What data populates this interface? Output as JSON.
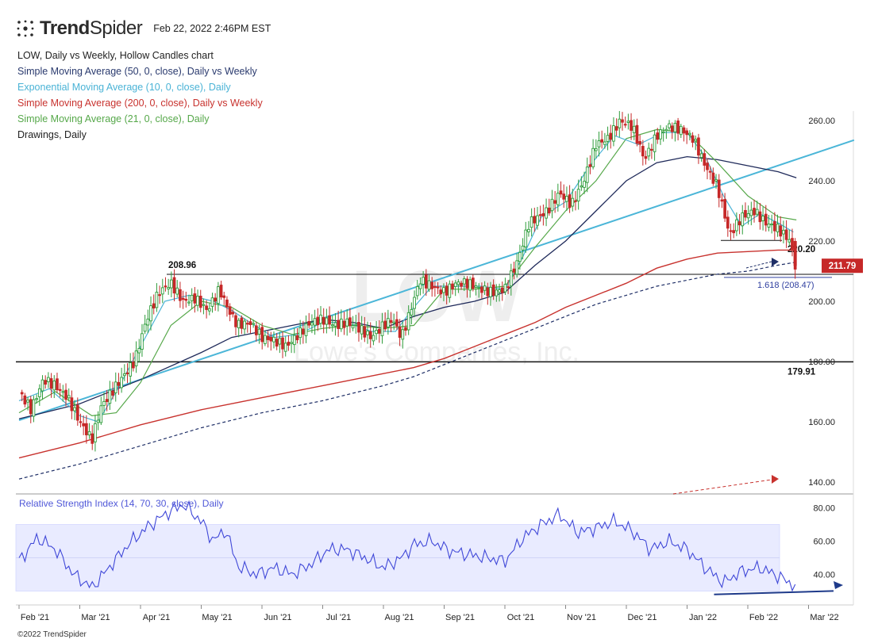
{
  "header": {
    "brand_bold": "Trend",
    "brand_light": "Spider",
    "timestamp": "Feb 22, 2022 2:46PM EST"
  },
  "legend": [
    {
      "text": "LOW, Daily vs Weekly, Hollow Candles chart",
      "color": "#222222"
    },
    {
      "text": "Simple Moving Average (50, 0, close), Daily vs Weekly",
      "color": "#2a3a6e"
    },
    {
      "text": "Exponential Moving Average (10, 0, close), Daily",
      "color": "#4ab3d6"
    },
    {
      "text": "Simple Moving Average (200, 0, close), Daily vs Weekly",
      "color": "#c8322e"
    },
    {
      "text": "Simple Moving Average (21, 0, close), Daily",
      "color": "#56a84a"
    },
    {
      "text": "Drawings, Daily",
      "color": "#222222"
    }
  ],
  "watermark": {
    "ticker": "LOW",
    "name": "Lowe's Companies, Inc."
  },
  "copyright": "©2022 TrendSpider",
  "chart_data": {
    "type": "candlestick",
    "ticker": "LOW",
    "y_axis": {
      "ticks": [
        140,
        160,
        180,
        200,
        220,
        240,
        260
      ],
      "tick_labels": [
        "140.00",
        "160.00",
        "180.00",
        "200.00",
        "220.00",
        "240.00",
        "260.00"
      ],
      "range": [
        136,
        271
      ]
    },
    "x_axis": {
      "tick_labels": [
        "Feb '21",
        "Mar '21",
        "Apr '21",
        "May '21",
        "Jun '21",
        "Jul '21",
        "Aug '21",
        "Sep '21",
        "Oct '21",
        "Nov '21",
        "Dec '21",
        "Jan '22",
        "Feb '22",
        "Mar '22"
      ],
      "tick_months": [
        0,
        1,
        2,
        3,
        4,
        5,
        6,
        7,
        8,
        9,
        10,
        11,
        12,
        13
      ]
    },
    "price_path": [
      [
        0,
        170
      ],
      [
        0.2,
        164
      ],
      [
        0.4,
        174
      ],
      [
        0.6,
        172
      ],
      [
        0.8,
        168
      ],
      [
        1.0,
        160
      ],
      [
        1.2,
        154
      ],
      [
        1.35,
        165
      ],
      [
        1.6,
        172
      ],
      [
        1.9,
        180
      ],
      [
        2.1,
        194
      ],
      [
        2.3,
        203
      ],
      [
        2.5,
        206
      ],
      [
        2.7,
        200
      ],
      [
        2.9,
        201
      ],
      [
        3.1,
        197
      ],
      [
        3.3,
        204
      ],
      [
        3.45,
        197
      ],
      [
        3.6,
        192
      ],
      [
        3.8,
        193
      ],
      [
        4.0,
        188
      ],
      [
        4.2,
        187
      ],
      [
        4.4,
        185
      ],
      [
        4.6,
        189
      ],
      [
        4.8,
        193
      ],
      [
        5.0,
        194
      ],
      [
        5.2,
        192
      ],
      [
        5.4,
        193
      ],
      [
        5.6,
        191
      ],
      [
        5.8,
        188
      ],
      [
        6.0,
        192
      ],
      [
        6.15,
        194
      ],
      [
        6.3,
        188
      ],
      [
        6.4,
        194
      ],
      [
        6.6,
        207
      ],
      [
        6.8,
        205
      ],
      [
        7.0,
        203
      ],
      [
        7.2,
        206
      ],
      [
        7.4,
        206
      ],
      [
        7.6,
        204
      ],
      [
        7.8,
        203
      ],
      [
        8.0,
        204
      ],
      [
        8.2,
        213
      ],
      [
        8.4,
        226
      ],
      [
        8.7,
        230
      ],
      [
        8.9,
        236
      ],
      [
        9.1,
        232
      ],
      [
        9.3,
        240
      ],
      [
        9.5,
        252
      ],
      [
        9.7,
        254
      ],
      [
        9.9,
        260
      ],
      [
        10.1,
        258
      ],
      [
        10.3,
        247
      ],
      [
        10.5,
        255
      ],
      [
        10.7,
        258
      ],
      [
        10.9,
        257
      ],
      [
        11.1,
        254
      ],
      [
        11.3,
        245
      ],
      [
        11.5,
        238
      ],
      [
        11.7,
        222
      ],
      [
        11.9,
        228
      ],
      [
        12.1,
        230
      ],
      [
        12.3,
        226
      ],
      [
        12.5,
        224
      ],
      [
        12.7,
        220
      ],
      [
        12.78,
        211.79
      ]
    ],
    "sma50_path": [
      [
        0,
        161
      ],
      [
        1.0,
        166
      ],
      [
        2.0,
        174
      ],
      [
        3.0,
        183
      ],
      [
        3.5,
        188
      ],
      [
        4.0,
        190
      ],
      [
        4.5,
        192
      ],
      [
        5.0,
        194
      ],
      [
        5.5,
        193
      ],
      [
        6.0,
        191
      ],
      [
        6.5,
        195
      ],
      [
        7.0,
        198
      ],
      [
        7.5,
        200
      ],
      [
        8.0,
        203
      ],
      [
        8.5,
        212
      ],
      [
        9.0,
        220
      ],
      [
        9.5,
        230
      ],
      [
        10.0,
        240
      ],
      [
        10.5,
        246
      ],
      [
        11.0,
        248
      ],
      [
        11.5,
        247
      ],
      [
        12.0,
        245
      ],
      [
        12.5,
        243
      ],
      [
        12.8,
        241
      ]
    ],
    "ema10_path": [
      [
        0,
        167
      ],
      [
        0.5,
        171
      ],
      [
        1.0,
        162
      ],
      [
        1.3,
        160
      ],
      [
        1.6,
        170
      ],
      [
        2.0,
        185
      ],
      [
        2.4,
        200
      ],
      [
        2.8,
        202
      ],
      [
        3.2,
        200
      ],
      [
        3.5,
        197
      ],
      [
        3.8,
        193
      ],
      [
        4.2,
        188
      ],
      [
        4.6,
        189
      ],
      [
        5.0,
        193
      ],
      [
        5.4,
        193
      ],
      [
        5.8,
        190
      ],
      [
        6.2,
        190
      ],
      [
        6.5,
        198
      ],
      [
        6.8,
        205
      ],
      [
        7.2,
        205
      ],
      [
        7.6,
        205
      ],
      [
        8.0,
        204
      ],
      [
        8.3,
        215
      ],
      [
        8.6,
        228
      ],
      [
        9.0,
        233
      ],
      [
        9.4,
        245
      ],
      [
        9.8,
        255
      ],
      [
        10.2,
        252
      ],
      [
        10.6,
        256
      ],
      [
        11.0,
        256
      ],
      [
        11.3,
        248
      ],
      [
        11.6,
        235
      ],
      [
        11.9,
        225
      ],
      [
        12.2,
        229
      ],
      [
        12.5,
        226
      ],
      [
        12.75,
        223
      ]
    ],
    "sma200_path": [
      [
        0,
        148
      ],
      [
        1.0,
        153
      ],
      [
        2.0,
        159
      ],
      [
        3.0,
        164
      ],
      [
        4.0,
        168
      ],
      [
        5.0,
        172
      ],
      [
        6.0,
        176
      ],
      [
        6.5,
        178
      ],
      [
        7.0,
        181
      ],
      [
        7.5,
        185
      ],
      [
        8.0,
        189
      ],
      [
        8.5,
        193
      ],
      [
        9.0,
        198
      ],
      [
        9.5,
        202
      ],
      [
        10.0,
        206
      ],
      [
        10.5,
        211
      ],
      [
        11.0,
        214
      ],
      [
        11.5,
        216
      ],
      [
        12.0,
        216.5
      ],
      [
        12.5,
        217
      ],
      [
        12.8,
        217
      ]
    ],
    "sma21_path": [
      [
        0,
        163
      ],
      [
        0.6,
        170
      ],
      [
        1.2,
        162
      ],
      [
        1.6,
        163
      ],
      [
        2.0,
        173
      ],
      [
        2.5,
        192
      ],
      [
        3.0,
        200
      ],
      [
        3.5,
        198
      ],
      [
        4.0,
        192
      ],
      [
        4.5,
        189
      ],
      [
        5.0,
        191
      ],
      [
        5.5,
        192
      ],
      [
        6.0,
        191
      ],
      [
        6.5,
        192
      ],
      [
        7.0,
        204
      ],
      [
        7.5,
        204
      ],
      [
        8.0,
        205
      ],
      [
        8.5,
        218
      ],
      [
        9.0,
        230
      ],
      [
        9.5,
        240
      ],
      [
        10.0,
        254
      ],
      [
        10.5,
        257
      ],
      [
        11.0,
        256
      ],
      [
        11.5,
        246
      ],
      [
        12.0,
        235
      ],
      [
        12.5,
        228
      ],
      [
        12.8,
        227
      ]
    ],
    "weekly_sma_dashed_path": [
      [
        0,
        141
      ],
      [
        1.0,
        146
      ],
      [
        2.0,
        152
      ],
      [
        3.0,
        158
      ],
      [
        4.0,
        163
      ],
      [
        5.0,
        167
      ],
      [
        6.0,
        172
      ],
      [
        6.5,
        175
      ],
      [
        7.0,
        179
      ],
      [
        7.5,
        183
      ],
      [
        8.0,
        187
      ],
      [
        8.5,
        191
      ],
      [
        9.0,
        195
      ],
      [
        9.5,
        199
      ],
      [
        10.0,
        202
      ],
      [
        10.5,
        205
      ],
      [
        11.0,
        207
      ],
      [
        11.5,
        209
      ],
      [
        12.0,
        210
      ],
      [
        12.5,
        212
      ],
      [
        12.8,
        213
      ]
    ],
    "trendline": [
      [
        0,
        160.5
      ],
      [
        13.75,
        253.5
      ]
    ],
    "horizontal_levels": [
      {
        "value": 208.96,
        "label": "208.96"
      },
      {
        "value": 179.91,
        "label": "179.91"
      },
      {
        "value": 220.2,
        "label": "220.20"
      },
      {
        "value": 208.47,
        "label": "1.618 (208.47)"
      }
    ],
    "last_price": {
      "value": 211.79,
      "label": "211.79"
    },
    "rsi": {
      "title": "Relative Strength Index (14, 70, 30, close), Daily",
      "ticks": [
        40,
        60,
        80
      ],
      "tick_labels": [
        "40.00",
        "60.00",
        "80.00"
      ],
      "band": [
        30,
        70
      ],
      "range": [
        22,
        90
      ],
      "path": [
        [
          0,
          48
        ],
        [
          0.3,
          62
        ],
        [
          0.6,
          55
        ],
        [
          0.9,
          40
        ],
        [
          1.2,
          32
        ],
        [
          1.5,
          45
        ],
        [
          1.8,
          58
        ],
        [
          2.1,
          68
        ],
        [
          2.4,
          76
        ],
        [
          2.7,
          82
        ],
        [
          3.0,
          72
        ],
        [
          3.2,
          60
        ],
        [
          3.4,
          67
        ],
        [
          3.6,
          45
        ],
        [
          3.9,
          40
        ],
        [
          4.2,
          44
        ],
        [
          4.5,
          40
        ],
        [
          4.8,
          46
        ],
        [
          5.1,
          55
        ],
        [
          5.4,
          55
        ],
        [
          5.7,
          50
        ],
        [
          6.0,
          44
        ],
        [
          6.3,
          50
        ],
        [
          6.5,
          58
        ],
        [
          6.8,
          60
        ],
        [
          7.1,
          54
        ],
        [
          7.4,
          52
        ],
        [
          7.7,
          50
        ],
        [
          8.0,
          48
        ],
        [
          8.3,
          62
        ],
        [
          8.6,
          70
        ],
        [
          8.9,
          76
        ],
        [
          9.2,
          65
        ],
        [
          9.5,
          68
        ],
        [
          9.8,
          72
        ],
        [
          10.1,
          66
        ],
        [
          10.4,
          55
        ],
        [
          10.7,
          60
        ],
        [
          11.0,
          55
        ],
        [
          11.3,
          44
        ],
        [
          11.6,
          35
        ],
        [
          11.9,
          42
        ],
        [
          12.2,
          44
        ],
        [
          12.5,
          39
        ],
        [
          12.78,
          33
        ]
      ],
      "divergence_arrow": [
        [
          11.47,
          28
        ],
        [
          12.68,
          31
        ]
      ]
    }
  }
}
